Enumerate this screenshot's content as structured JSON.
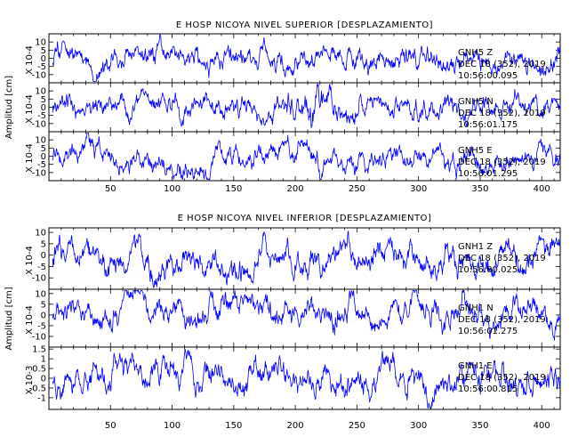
{
  "chart_data": [
    {
      "type": "line",
      "title": "E HOSP NICOYA NIVEL SUPERIOR [DESPLAZAMIENTO]",
      "ylabel": "Amplitud [cm]",
      "xlim": [
        0,
        415
      ],
      "xticks": [
        50,
        100,
        150,
        200,
        250,
        300,
        350,
        400
      ],
      "show_xtick_labels": true,
      "line_color": "#0000ff",
      "series": [
        {
          "scale_label": "X 10-4",
          "ylim": [
            -15,
            15
          ],
          "yticks": [
            10,
            5,
            0,
            -5,
            -10
          ],
          "station": "GNH5",
          "channel": "Z",
          "date": "DEC 18 (352), 2019",
          "time": "10:56:00.095",
          "seed": 11,
          "burst_center": 0,
          "burst_gain": 1.0
        },
        {
          "scale_label": "X 10-4",
          "ylim": [
            -15,
            15
          ],
          "yticks": [
            10,
            5,
            0,
            -5,
            -10
          ],
          "station": "GNH5",
          "channel": "N",
          "date": "DEC 18 (352), 2019",
          "time": "10:56:01.175",
          "seed": 23,
          "burst_center": 212,
          "burst_gain": 2.2
        },
        {
          "scale_label": "X 10-4",
          "ylim": [
            -15,
            15
          ],
          "yticks": [
            10,
            5,
            0,
            -5,
            -10
          ],
          "station": "GNH5",
          "channel": "E",
          "date": "DEC 18 (352), 2019",
          "time": "10:56:01.295",
          "seed": 37,
          "burst_center": 212,
          "burst_gain": 1.4
        }
      ]
    },
    {
      "type": "line",
      "title": "E HOSP NICOYA NIVEL INFERIOR [DESPLAZAMIENTO]",
      "ylabel": "Amplitud [cm]",
      "xlim": [
        0,
        415
      ],
      "xticks": [
        50,
        100,
        150,
        200,
        250,
        300,
        350,
        400
      ],
      "show_xtick_labels": true,
      "line_color": "#0000ff",
      "series": [
        {
          "scale_label": "X 10-4",
          "ylim": [
            -15,
            12
          ],
          "yticks": [
            10,
            5,
            0,
            -5,
            -10
          ],
          "station": "GNH1",
          "channel": "Z",
          "date": "DEC 18 (352), 2019",
          "time": "10:56:00.025",
          "seed": 53,
          "burst_center": 0,
          "burst_gain": 1.0
        },
        {
          "scale_label": "X 10-4",
          "ylim": [
            -15,
            12
          ],
          "yticks": [
            10,
            5,
            0,
            -5,
            -10
          ],
          "station": "GNH1",
          "channel": "N",
          "date": "DEC 18 (352), 2019",
          "time": "10:56:01.275",
          "seed": 67,
          "burst_center": 0,
          "burst_gain": 1.0
        },
        {
          "scale_label": "X 10-3",
          "ylim": [
            -1.6,
            1.6
          ],
          "yticks": [
            1.5,
            1,
            0.5,
            0,
            -0.5,
            -1
          ],
          "station": "GNH1",
          "channel": "E",
          "date": "DEC 18 (352), 2019",
          "time": "10:56:00.815",
          "seed": 79,
          "burst_center": 0,
          "burst_gain": 1.0
        }
      ]
    }
  ]
}
